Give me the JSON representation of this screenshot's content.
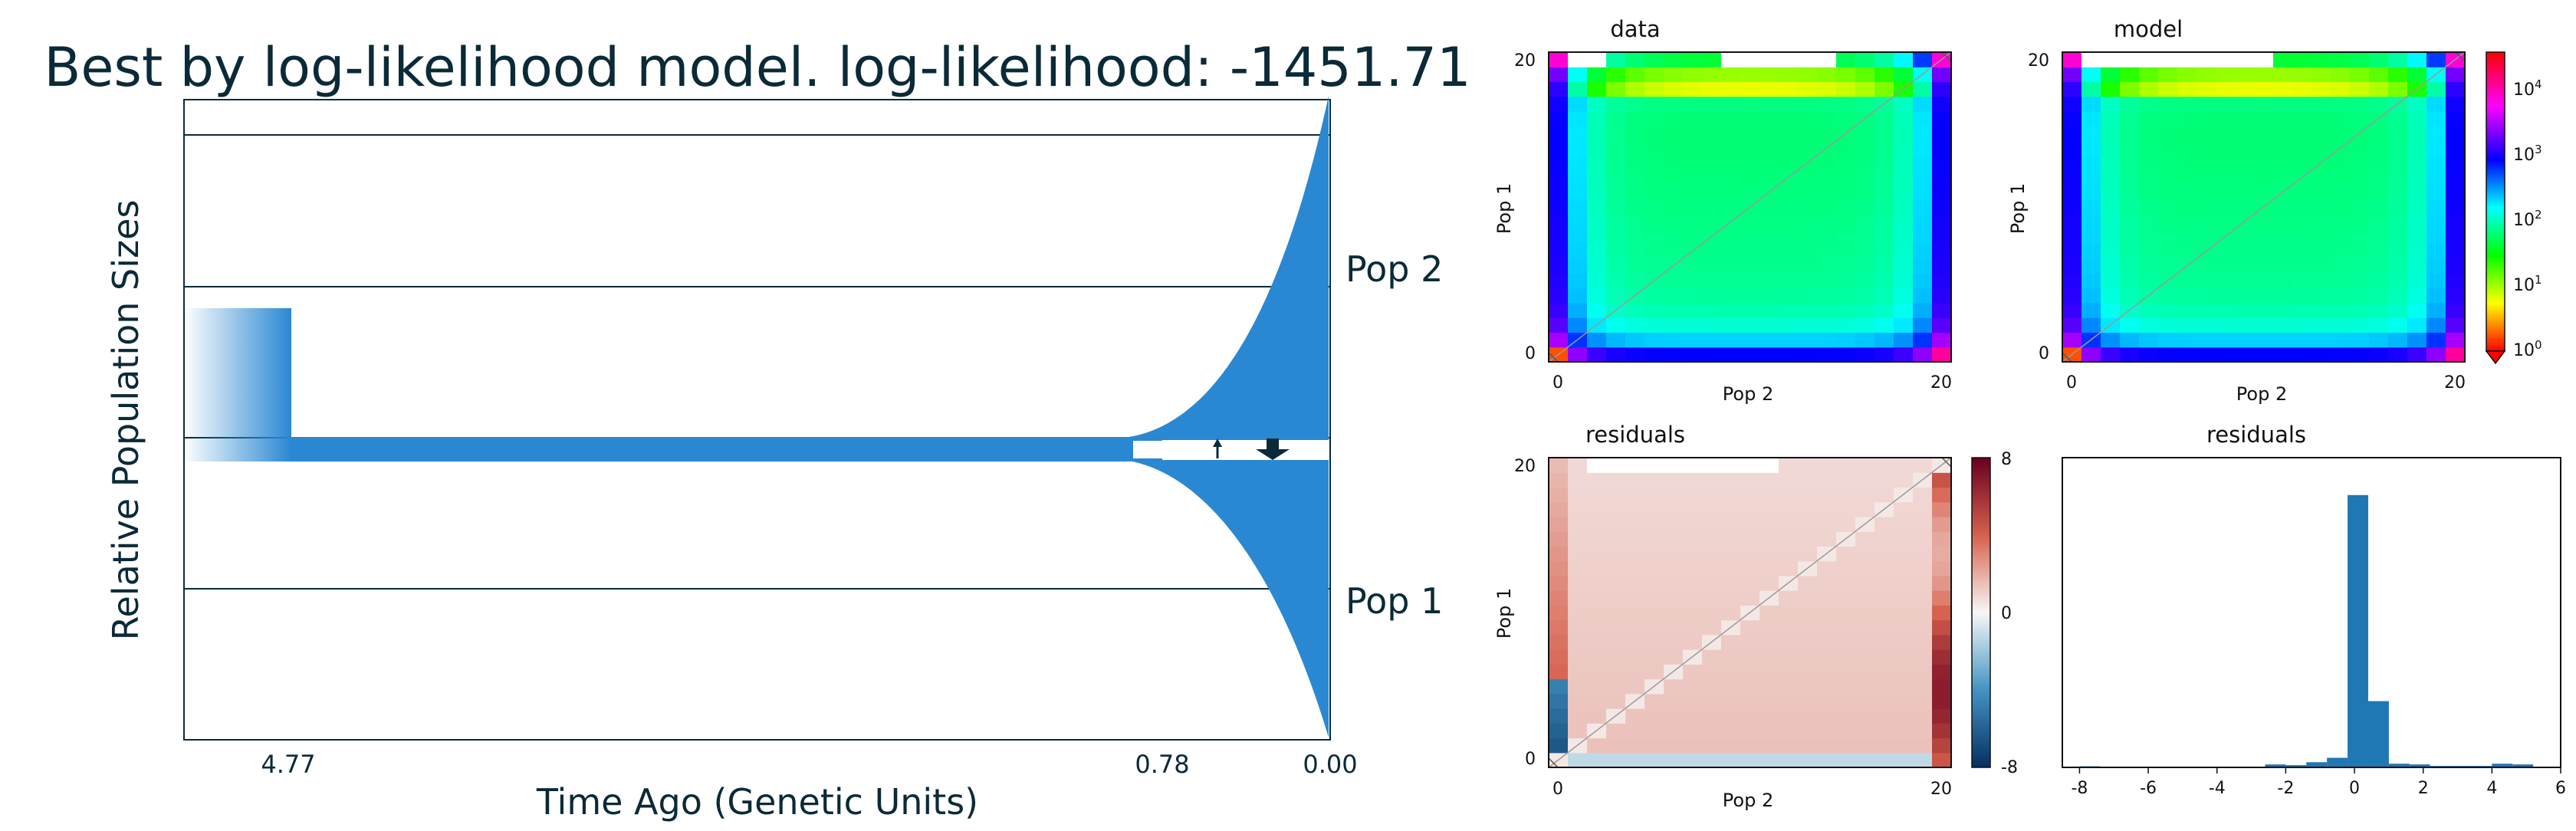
{
  "title": "Best by log-likelihood model. log-likelihood: -1451.71",
  "demography": {
    "xlabel": "Time Ago (Genetic Units)",
    "ylabel": "Relative Population Sizes",
    "time_ticks": [
      "4.77",
      "0.78",
      "0.00"
    ],
    "pop_labels": [
      "Pop 2",
      "Pop 1"
    ],
    "color": "#2a88d3",
    "line_color": "#0b2a38"
  },
  "chart_data": [
    {
      "type": "heatmap",
      "title": "data",
      "xlabel": "Pop 2",
      "ylabel": "Pop 1",
      "x_ticks": [
        "0",
        "20"
      ],
      "y_ticks": [
        "0",
        "20"
      ],
      "log_color_scale": true
    },
    {
      "type": "heatmap",
      "title": "model",
      "xlabel": "Pop 2",
      "ylabel": "Pop 1",
      "x_ticks": [
        "0",
        "20"
      ],
      "y_ticks": [
        "0",
        "20"
      ],
      "log_color_scale": true,
      "colorbar_ticks": [
        "10^4",
        "10^3",
        "10^2",
        "10^1",
        "10^0"
      ]
    },
    {
      "type": "heatmap",
      "title": "residuals",
      "xlabel": "Pop 2",
      "ylabel": "Pop 1",
      "x_ticks": [
        "0",
        "20"
      ],
      "y_ticks": [
        "0",
        "20"
      ],
      "colorbar_ticks": [
        "8",
        "0",
        "-8"
      ],
      "colorbar_range": [
        -8,
        8
      ]
    },
    {
      "type": "bar",
      "title": "residuals",
      "x_ticks": [
        "-8",
        "-6",
        "-4",
        "-2",
        "0",
        "2",
        "4",
        "6"
      ],
      "xlim": [
        -8.5,
        6
      ],
      "bin_width": 0.6,
      "bin_starts": [
        -8.0,
        -6.8,
        -3.8,
        -2.6,
        -2.0,
        -1.4,
        -0.8,
        -0.2,
        0.4,
        1.0,
        1.6,
        2.2,
        2.8,
        3.4,
        4.0,
        4.6
      ],
      "counts": [
        1.5,
        1,
        0.8,
        4,
        3,
        7,
        13,
        370,
        90,
        5,
        4,
        2,
        2,
        2,
        5,
        4
      ],
      "ylim": [
        0,
        400
      ],
      "color": "#1f77b4"
    }
  ]
}
